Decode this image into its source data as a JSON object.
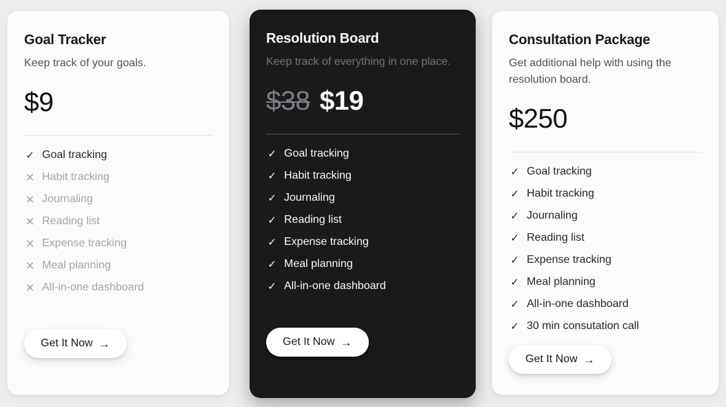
{
  "page": {
    "background_color": "#ececec",
    "light_card_color": "#fbfbfb",
    "dark_card_color": "#1a1a1a",
    "button_color": "#ffffff"
  },
  "icons": {
    "check": "✓",
    "cross": "×",
    "arrow": "→"
  },
  "cards": [
    {
      "title": "Goal Tracker",
      "description": "Keep track of your goals.",
      "price": "$9",
      "button_label": "Get It Now",
      "features": [
        {
          "label": "Goal tracking",
          "included": true
        },
        {
          "label": "Habit tracking",
          "included": false
        },
        {
          "label": "Journaling",
          "included": false
        },
        {
          "label": "Reading list",
          "included": false
        },
        {
          "label": "Expense tracking",
          "included": false
        },
        {
          "label": "Meal planning",
          "included": false
        },
        {
          "label": "All-in-one dashboard",
          "included": false
        }
      ]
    },
    {
      "title": "Resolution Board",
      "description": "Keep track of everything in one place.",
      "original_price": "$38",
      "price": "$19",
      "button_label": "Get It Now",
      "features": [
        {
          "label": "Goal tracking",
          "included": true
        },
        {
          "label": "Habit tracking",
          "included": true
        },
        {
          "label": "Journaling",
          "included": true
        },
        {
          "label": "Reading list",
          "included": true
        },
        {
          "label": "Expense tracking",
          "included": true
        },
        {
          "label": "Meal planning",
          "included": true
        },
        {
          "label": "All-in-one dashboard",
          "included": true
        }
      ]
    },
    {
      "title": "Consultation Package",
      "description": "Get additional help with using the resolution board.",
      "price": "$250",
      "button_label": "Get It Now",
      "features": [
        {
          "label": "Goal tracking",
          "included": true
        },
        {
          "label": "Habit tracking",
          "included": true
        },
        {
          "label": "Journaling",
          "included": true
        },
        {
          "label": "Reading list",
          "included": true
        },
        {
          "label": "Expense tracking",
          "included": true
        },
        {
          "label": "Meal planning",
          "included": true
        },
        {
          "label": "All-in-one dashboard",
          "included": true
        },
        {
          "label": "30 min consutation call",
          "included": true
        }
      ]
    }
  ]
}
